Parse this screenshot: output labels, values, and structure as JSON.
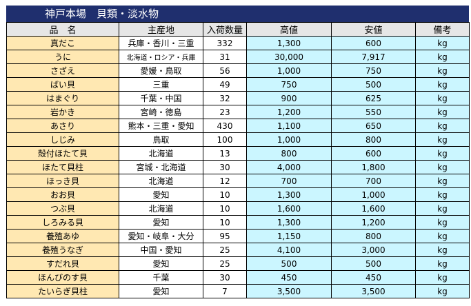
{
  "title": "神戸本場　貝類・淡水物",
  "headers": [
    "品　名",
    "主産地",
    "入荷数量",
    "高値",
    "安値",
    "備考"
  ],
  "rows": [
    {
      "name": "真だこ",
      "origin": "兵庫・香川・三重",
      "qty": "332",
      "high": "1,300",
      "low": "600",
      "note": "kg"
    },
    {
      "name": "うに",
      "origin": "北海道・ロシア・兵庫",
      "qty": "31",
      "high": "30,000",
      "low": "7,917",
      "note": "kg"
    },
    {
      "name": "さざえ",
      "origin": "愛媛・鳥取",
      "qty": "56",
      "high": "1,000",
      "low": "750",
      "note": "kg"
    },
    {
      "name": "ばい貝",
      "origin": "三重",
      "qty": "49",
      "high": "750",
      "low": "500",
      "note": "kg"
    },
    {
      "name": "はまぐり",
      "origin": "千葉・中国",
      "qty": "32",
      "high": "900",
      "low": "625",
      "note": "kg"
    },
    {
      "name": "岩かき",
      "origin": "宮崎・徳島",
      "qty": "23",
      "high": "1,200",
      "low": "550",
      "note": "kg"
    },
    {
      "name": "あさり",
      "origin": "熊本・三重・愛知",
      "qty": "430",
      "high": "1,100",
      "low": "650",
      "note": "kg"
    },
    {
      "name": "しじみ",
      "origin": "鳥取",
      "qty": "100",
      "high": "1,000",
      "low": "800",
      "note": "kg"
    },
    {
      "name": "殻付ほたて貝",
      "origin": "北海道",
      "qty": "13",
      "high": "800",
      "low": "600",
      "note": "kg"
    },
    {
      "name": "ほたて貝柱",
      "origin": "宮城・北海道",
      "qty": "30",
      "high": "4,000",
      "low": "1,800",
      "note": "kg"
    },
    {
      "name": "ほっき貝",
      "origin": "北海道",
      "qty": "12",
      "high": "700",
      "low": "700",
      "note": "kg"
    },
    {
      "name": "おお貝",
      "origin": "愛知",
      "qty": "10",
      "high": "1,300",
      "low": "1,000",
      "note": "kg"
    },
    {
      "name": "つぶ貝",
      "origin": "北海道",
      "qty": "10",
      "high": "1,600",
      "low": "1,600",
      "note": "kg"
    },
    {
      "name": "しろみる貝",
      "origin": "愛知",
      "qty": "10",
      "high": "1,300",
      "low": "1,200",
      "note": "kg"
    },
    {
      "name": "養殖あゆ",
      "origin": "愛知・岐阜・大分",
      "qty": "95",
      "high": "1,150",
      "low": "800",
      "note": "kg"
    },
    {
      "name": "養殖うなぎ",
      "origin": "中国・愛知",
      "qty": "25",
      "high": "4,100",
      "low": "3,000",
      "note": "kg"
    },
    {
      "name": "すだれ貝",
      "origin": "愛知",
      "qty": "25",
      "high": "500",
      "low": "500",
      "note": "kg"
    },
    {
      "name": "ほんびのす貝",
      "origin": "千葉",
      "qty": "30",
      "high": "450",
      "low": "450",
      "note": "kg"
    },
    {
      "name": "たいらぎ貝柱",
      "origin": "愛知",
      "qty": "7",
      "high": "3,500",
      "low": "3,500",
      "note": "kg"
    }
  ]
}
